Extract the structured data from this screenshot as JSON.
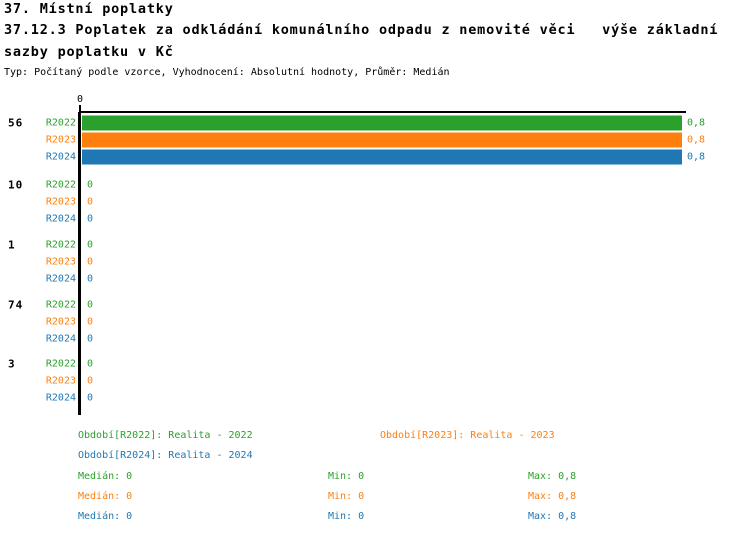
{
  "header": {
    "title": "37. Místní poplatky",
    "subtitle_line1": "37.12.3 Poplatek za odkládání komunálního odpadu z nemovité věci   výše základní",
    "subtitle_line2": "sazby poplatku v Kč",
    "meta": "Typ: Počítaný podle vzorce, Vyhodnocení: Absolutní hodnoty, Průměr: Medián"
  },
  "colors": {
    "r2022": "#2ca02c",
    "r2023": "#ff7f0e",
    "r2024": "#1f77b4",
    "axis": "#000000",
    "background": "#ffffff"
  },
  "chart_data": {
    "type": "bar",
    "orientation": "horizontal",
    "xlim": [
      0,
      0.8
    ],
    "x_tick_label": "0",
    "grid": false,
    "series_names": [
      "R2022",
      "R2023",
      "R2024"
    ],
    "groups": [
      {
        "label": "56",
        "rows": [
          {
            "series": "R2022",
            "value": 0.8,
            "value_label": "0,8"
          },
          {
            "series": "R2023",
            "value": 0.8,
            "value_label": "0,8"
          },
          {
            "series": "R2024",
            "value": 0.8,
            "value_label": "0,8"
          }
        ]
      },
      {
        "label": "10",
        "rows": [
          {
            "series": "R2022",
            "value": 0,
            "value_label": "0"
          },
          {
            "series": "R2023",
            "value": 0,
            "value_label": "0"
          },
          {
            "series": "R2024",
            "value": 0,
            "value_label": "0"
          }
        ]
      },
      {
        "label": "1",
        "rows": [
          {
            "series": "R2022",
            "value": 0,
            "value_label": "0"
          },
          {
            "series": "R2023",
            "value": 0,
            "value_label": "0"
          },
          {
            "series": "R2024",
            "value": 0,
            "value_label": "0"
          }
        ]
      },
      {
        "label": "74",
        "rows": [
          {
            "series": "R2022",
            "value": 0,
            "value_label": "0"
          },
          {
            "series": "R2023",
            "value": 0,
            "value_label": "0"
          },
          {
            "series": "R2024",
            "value": 0,
            "value_label": "0"
          }
        ]
      },
      {
        "label": "3",
        "rows": [
          {
            "series": "R2022",
            "value": 0,
            "value_label": "0"
          },
          {
            "series": "R2023",
            "value": 0,
            "value_label": "0"
          },
          {
            "series": "R2024",
            "value": 0,
            "value_label": "0"
          }
        ]
      }
    ],
    "legend": [
      {
        "label": "Období[R2022]: Realita - 2022"
      },
      {
        "label": "Období[R2023]: Realita - 2023"
      },
      {
        "label": "Období[R2024]: Realita - 2024"
      }
    ],
    "stats": [
      {
        "median": "Medián: 0",
        "min": "Min: 0",
        "max": "Max: 0,8"
      },
      {
        "median": "Medián: 0",
        "min": "Min: 0",
        "max": "Max: 0,8"
      },
      {
        "median": "Medián: 0",
        "min": "Min: 0",
        "max": "Max: 0,8"
      }
    ]
  }
}
